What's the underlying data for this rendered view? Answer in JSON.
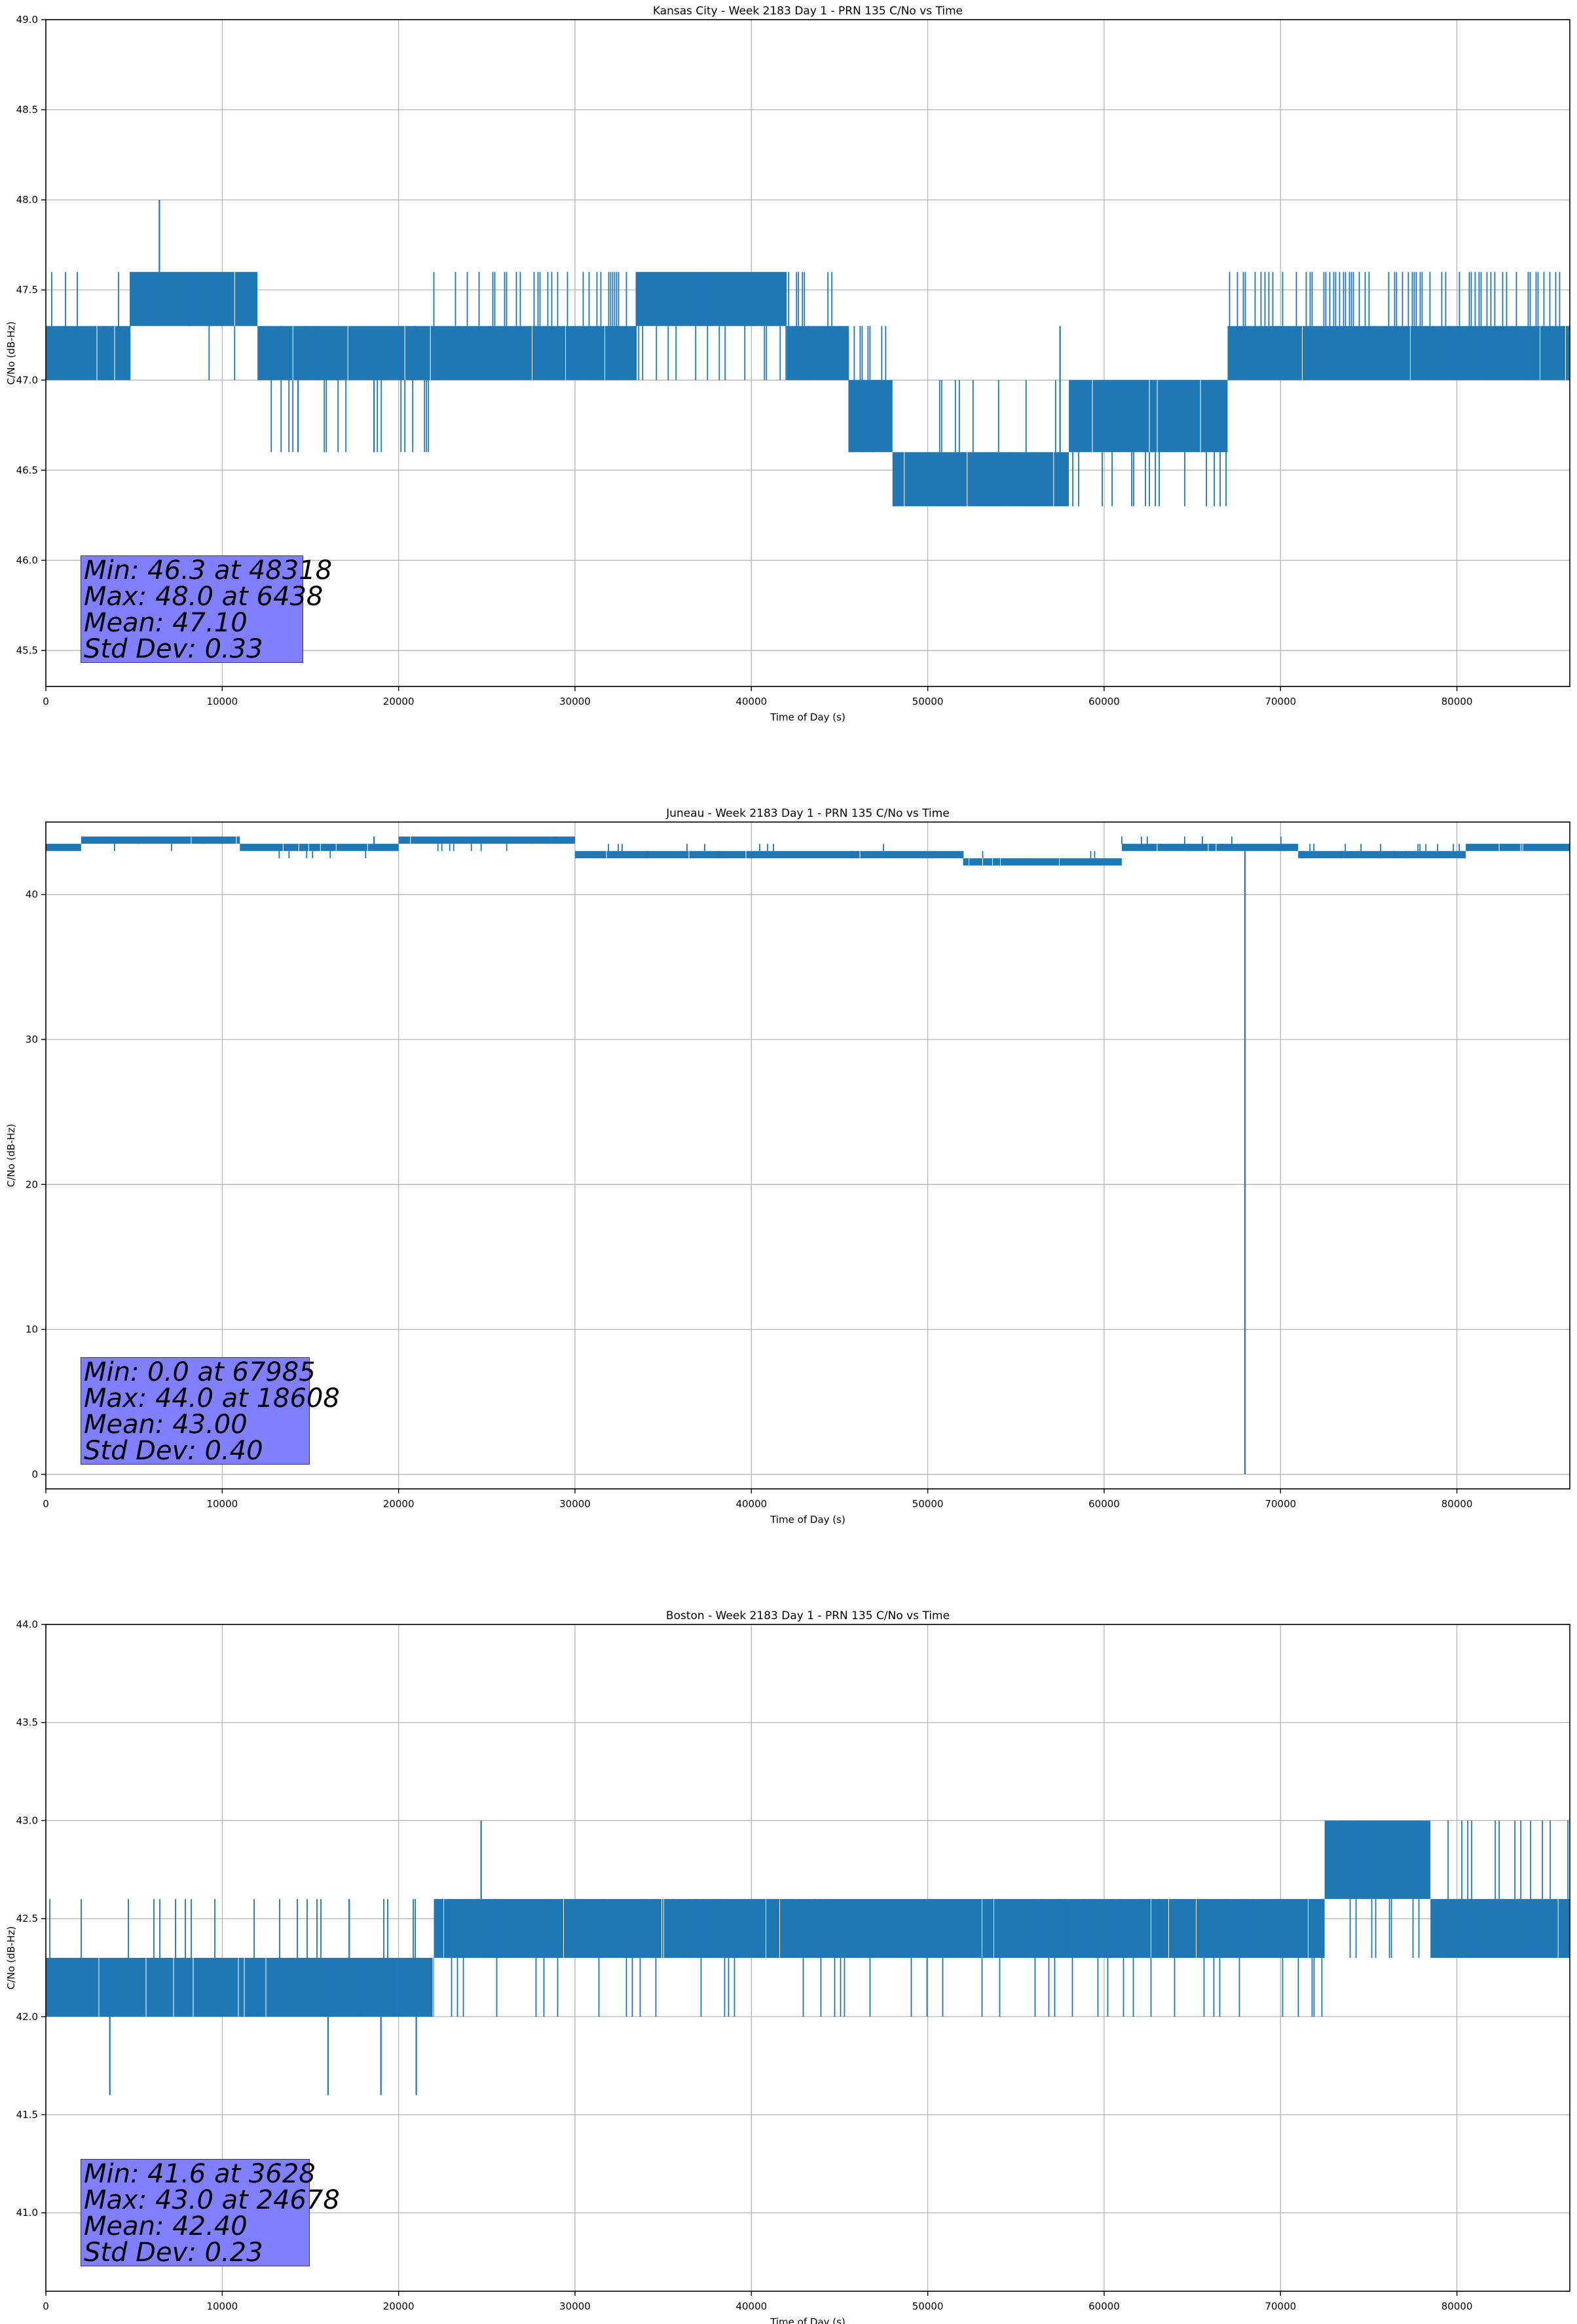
{
  "x_axis_label": "Time of Day (s)",
  "y_axis_label": "C/No (dB-Hz)",
  "series_color": "#1f77b4",
  "box_color": "#7f7fff",
  "chart_data": [
    {
      "type": "line",
      "title": "Kansas City - Week 2183 Day 1 - PRN 135 C/No vs Time",
      "xlabel": "Time of Day (s)",
      "ylabel": "C/No (dB-Hz)",
      "xlim": [
        0,
        86400
      ],
      "ylim": [
        45.3,
        49.0
      ],
      "xticks": [
        0,
        10000,
        20000,
        30000,
        40000,
        50000,
        60000,
        70000,
        80000
      ],
      "yticks": [
        45.5,
        46.0,
        46.5,
        47.0,
        47.5,
        48.0,
        48.5,
        49.0
      ],
      "ytick_labels": [
        "45.5",
        "46.0",
        "46.5",
        "47.0",
        "47.5",
        "48.0",
        "48.5",
        "49.0"
      ],
      "grid": true,
      "segments": [
        {
          "x": [
            0,
            4800
          ],
          "lo": 47.0,
          "hi": 47.3,
          "alt": 47.6,
          "alt_rate": 0.2
        },
        {
          "x": [
            4800,
            12000
          ],
          "lo": 47.3,
          "hi": 47.6,
          "alt": 47.0,
          "alt_rate": 0.05
        },
        {
          "x": [
            12000,
            22000
          ],
          "lo": 47.0,
          "hi": 47.3,
          "alt": 46.6,
          "alt_rate": 0.1
        },
        {
          "x": [
            22000,
            33500
          ],
          "lo": 47.0,
          "hi": 47.3,
          "alt": 47.6,
          "alt_rate": 0.25
        },
        {
          "x": [
            33500,
            42000
          ],
          "lo": 47.3,
          "hi": 47.6,
          "alt": 47.0,
          "alt_rate": 0.25
        },
        {
          "x": [
            42000,
            45500
          ],
          "lo": 47.0,
          "hi": 47.3,
          "alt": 47.6,
          "alt_rate": 0.15
        },
        {
          "x": [
            45500,
            48000
          ],
          "lo": 46.6,
          "hi": 47.0,
          "alt": 47.3,
          "alt_rate": 0.15
        },
        {
          "x": [
            48000,
            58000
          ],
          "lo": 46.3,
          "hi": 46.6,
          "alt": 47.0,
          "alt_rate": 0.1
        },
        {
          "x": [
            58000,
            67000
          ],
          "lo": 46.6,
          "hi": 47.0,
          "alt": 46.3,
          "alt_rate": 0.12
        },
        {
          "x": [
            67000,
            86400
          ],
          "lo": 47.0,
          "hi": 47.3,
          "alt": 47.6,
          "alt_rate": 0.3
        }
      ],
      "spikes": [
        {
          "x": 6438,
          "y": 48.0
        },
        {
          "x": 57500,
          "y": 47.3
        },
        {
          "x": 14300,
          "y": 46.6
        },
        {
          "x": 18608,
          "y": 46.6
        }
      ],
      "stats": [
        "Min: 46.3 at 48318",
        "Max: 48.0 at 6438",
        "Mean: 47.10",
        "Std Dev: 0.33"
      ]
    },
    {
      "type": "line",
      "title": "Juneau - Week 2183 Day 1 - PRN 135 C/No vs Time",
      "xlabel": "Time of Day (s)",
      "ylabel": "C/No (dB-Hz)",
      "xlim": [
        0,
        86400
      ],
      "ylim": [
        -1.0,
        45.0
      ],
      "xticks": [
        0,
        10000,
        20000,
        30000,
        40000,
        50000,
        60000,
        70000,
        80000
      ],
      "yticks": [
        0,
        10,
        20,
        30,
        40
      ],
      "ytick_labels": [
        "0",
        "10",
        "20",
        "30",
        "40"
      ],
      "grid": true,
      "segments": [
        {
          "x": [
            0,
            2000
          ],
          "lo": 43.0,
          "hi": 43.5,
          "alt": 43.0,
          "alt_rate": 0.0
        },
        {
          "x": [
            2000,
            11000
          ],
          "lo": 43.5,
          "hi": 44.0,
          "alt": 43.0,
          "alt_rate": 0.08
        },
        {
          "x": [
            11000,
            20000
          ],
          "lo": 43.0,
          "hi": 43.5,
          "alt": 42.5,
          "alt_rate": 0.08
        },
        {
          "x": [
            20000,
            30000
          ],
          "lo": 43.5,
          "hi": 44.0,
          "alt": 43.0,
          "alt_rate": 0.08
        },
        {
          "x": [
            30000,
            52000
          ],
          "lo": 42.5,
          "hi": 43.0,
          "alt": 43.5,
          "alt_rate": 0.05
        },
        {
          "x": [
            52000,
            61000
          ],
          "lo": 42.0,
          "hi": 42.5,
          "alt": 43.0,
          "alt_rate": 0.08
        },
        {
          "x": [
            61000,
            71000
          ],
          "lo": 43.0,
          "hi": 43.5,
          "alt": 44.0,
          "alt_rate": 0.06
        },
        {
          "x": [
            71000,
            80500
          ],
          "lo": 42.5,
          "hi": 43.0,
          "alt": 43.5,
          "alt_rate": 0.1
        },
        {
          "x": [
            80500,
            86400
          ],
          "lo": 43.0,
          "hi": 43.5,
          "alt": 43.0,
          "alt_rate": 0.0
        }
      ],
      "spikes": [
        {
          "x": 67985,
          "y": 0.0
        },
        {
          "x": 18608,
          "y": 44.0
        }
      ],
      "stats": [
        "Min: 0.0 at 67985",
        "Max: 44.0 at 18608",
        "Mean: 43.00",
        "Std Dev: 0.40"
      ]
    },
    {
      "type": "line",
      "title": "Boston - Week 2183 Day 1 - PRN 135 C/No vs Time",
      "xlabel": "Time of Day (s)",
      "ylabel": "C/No (dB-Hz)",
      "xlim": [
        0,
        86400
      ],
      "ylim": [
        40.6,
        44.0
      ],
      "xticks": [
        0,
        10000,
        20000,
        30000,
        40000,
        50000,
        60000,
        70000,
        80000
      ],
      "yticks": [
        41.0,
        41.5,
        42.0,
        42.5,
        43.0,
        43.5,
        44.0
      ],
      "ytick_labels": [
        "41.0",
        "41.5",
        "42.0",
        "42.5",
        "43.0",
        "43.5",
        "44.0"
      ],
      "grid": true,
      "segments": [
        {
          "x": [
            0,
            22000
          ],
          "lo": 42.0,
          "hi": 42.3,
          "alt": 42.6,
          "alt_rate": 0.1
        },
        {
          "x": [
            22000,
            72500
          ],
          "lo": 42.3,
          "hi": 42.6,
          "alt": 42.0,
          "alt_rate": 0.1
        },
        {
          "x": [
            72500,
            78500
          ],
          "lo": 42.6,
          "hi": 43.0,
          "alt": 42.3,
          "alt_rate": 0.15
        },
        {
          "x": [
            78500,
            86400
          ],
          "lo": 42.3,
          "hi": 42.6,
          "alt": 43.0,
          "alt_rate": 0.15
        }
      ],
      "spikes": [
        {
          "x": 3628,
          "y": 41.6
        },
        {
          "x": 24678,
          "y": 43.0
        },
        {
          "x": 16000,
          "y": 41.6
        },
        {
          "x": 19000,
          "y": 41.6
        },
        {
          "x": 21000,
          "y": 41.6
        },
        {
          "x": 17200,
          "y": 42.6
        }
      ],
      "stats": [
        "Min: 41.6 at 3628",
        "Max: 43.0 at 24678",
        "Mean: 42.40",
        "Std Dev: 0.23"
      ]
    }
  ]
}
